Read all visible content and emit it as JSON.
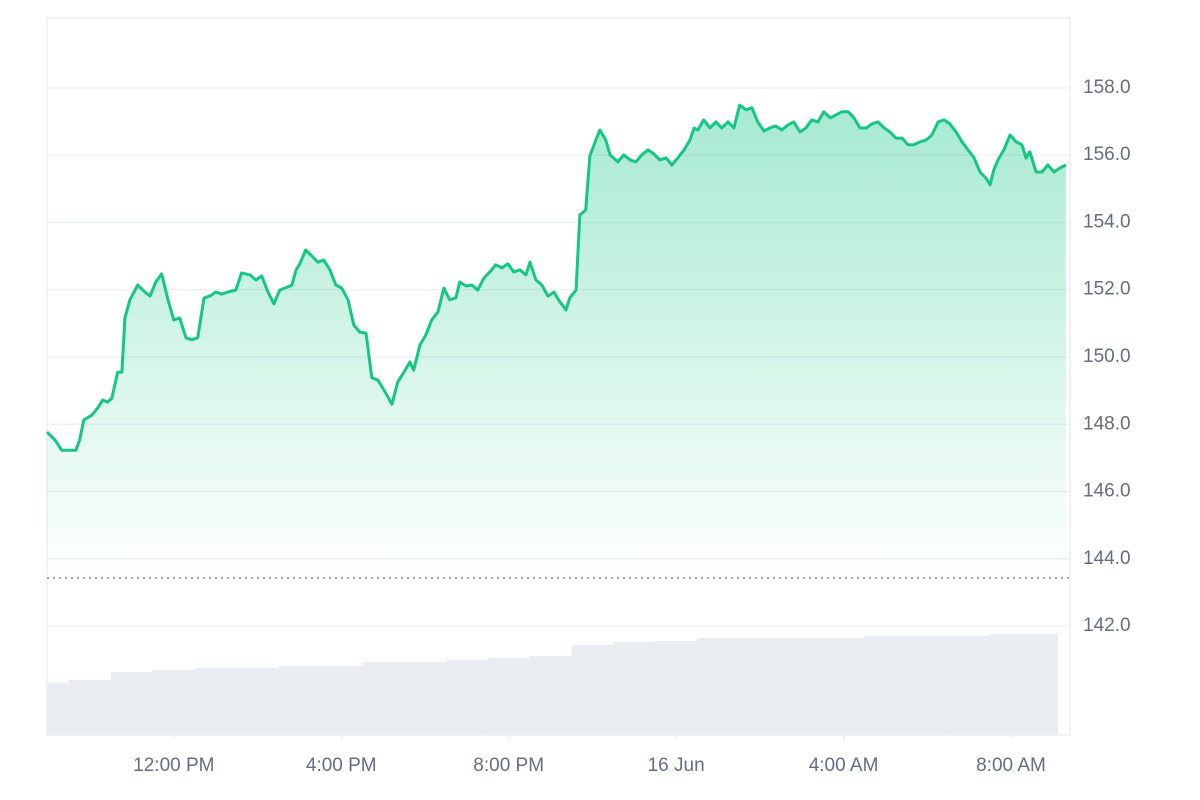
{
  "chart_data": {
    "type": "line",
    "grid": true,
    "xlim": [
      8.97,
      33.41
    ],
    "xticks": [
      {
        "value": 12,
        "label": "12:00 PM"
      },
      {
        "value": 16,
        "label": "4:00 PM"
      },
      {
        "value": 20,
        "label": "8:00 PM"
      },
      {
        "value": 24,
        "label": "16 Jun"
      },
      {
        "value": 28,
        "label": "4:00 AM"
      },
      {
        "value": 32,
        "label": "8:00 AM"
      }
    ],
    "ylim": [
      138.76,
      160.08
    ],
    "yticks": [
      {
        "value": 142,
        "label": "142.0"
      },
      {
        "value": 144,
        "label": "144.0"
      },
      {
        "value": 146,
        "label": "146.0"
      },
      {
        "value": 148,
        "label": "148.0"
      },
      {
        "value": 150,
        "label": "150.0"
      },
      {
        "value": 152,
        "label": "152.0"
      },
      {
        "value": 154,
        "label": "154.0"
      },
      {
        "value": 156,
        "label": "156.0"
      },
      {
        "value": 158,
        "label": "158.0"
      }
    ],
    "y2lim": [
      0,
      100
    ],
    "x": [
      8.97,
      9.16,
      9.32,
      9.51,
      9.66,
      9.75,
      9.85,
      10.04,
      10.18,
      10.3,
      10.42,
      10.52,
      10.66,
      10.76,
      10.83,
      10.95,
      11.14,
      11.31,
      11.43,
      11.57,
      11.71,
      11.86,
      12.0,
      12.14,
      12.29,
      12.43,
      12.57,
      12.72,
      12.86,
      13.0,
      13.15,
      13.29,
      13.48,
      13.62,
      13.82,
      13.96,
      14.1,
      14.25,
      14.39,
      14.53,
      14.72,
      14.82,
      14.92,
      15.01,
      15.15,
      15.3,
      15.44,
      15.58,
      15.73,
      15.87,
      16.01,
      16.16,
      16.3,
      16.44,
      16.59,
      16.73,
      16.87,
      17.02,
      17.21,
      17.35,
      17.5,
      17.64,
      17.73,
      17.88,
      18.02,
      18.16,
      18.31,
      18.45,
      18.59,
      18.74,
      18.83,
      18.98,
      19.12,
      19.26,
      19.41,
      19.55,
      19.69,
      19.84,
      19.98,
      20.12,
      20.27,
      20.41,
      20.51,
      20.65,
      20.79,
      20.94,
      21.08,
      21.22,
      21.37,
      21.46,
      21.61,
      21.7,
      21.84,
      21.94,
      22.08,
      22.18,
      22.32,
      22.42,
      22.61,
      22.75,
      22.9,
      23.04,
      23.18,
      23.33,
      23.47,
      23.61,
      23.76,
      23.9,
      24.04,
      24.19,
      24.33,
      24.43,
      24.52,
      24.66,
      24.81,
      24.95,
      25.09,
      25.24,
      25.38,
      25.52,
      25.67,
      25.81,
      25.95,
      26.1,
      26.24,
      26.38,
      26.53,
      26.67,
      26.81,
      26.96,
      27.1,
      27.24,
      27.39,
      27.53,
      27.68,
      27.82,
      27.96,
      28.11,
      28.25,
      28.39,
      28.54,
      28.68,
      28.82,
      28.97,
      29.11,
      29.25,
      29.4,
      29.54,
      29.68,
      29.83,
      29.97,
      30.11,
      30.26,
      30.4,
      30.54,
      30.69,
      30.83,
      30.97,
      31.12,
      31.26,
      31.4,
      31.5,
      31.59,
      31.69,
      31.83,
      31.98,
      32.12,
      32.26,
      32.36,
      32.45,
      32.6,
      32.74,
      32.88,
      33.03,
      33.17,
      33.31
    ],
    "series": [
      {
        "color": "#16c784",
        "values": [
          147.77,
          147.53,
          147.23,
          147.23,
          147.23,
          147.53,
          148.13,
          148.27,
          148.48,
          148.72,
          148.66,
          148.78,
          149.55,
          149.55,
          151.16,
          151.7,
          152.14,
          151.93,
          151.81,
          152.23,
          152.47,
          151.7,
          151.1,
          151.16,
          150.57,
          150.51,
          150.57,
          151.75,
          151.81,
          151.93,
          151.87,
          151.93,
          151.99,
          152.5,
          152.44,
          152.29,
          152.41,
          151.93,
          151.58,
          151.99,
          152.08,
          152.14,
          152.59,
          152.77,
          153.18,
          153.0,
          152.82,
          152.88,
          152.59,
          152.14,
          152.05,
          151.7,
          150.95,
          150.74,
          150.71,
          149.38,
          149.32,
          149.02,
          148.6,
          149.26,
          149.55,
          149.85,
          149.61,
          150.36,
          150.65,
          151.1,
          151.34,
          152.05,
          151.7,
          151.76,
          152.23,
          152.11,
          152.14,
          151.99,
          152.35,
          152.53,
          152.74,
          152.65,
          152.77,
          152.53,
          152.59,
          152.44,
          152.82,
          152.29,
          152.14,
          151.81,
          151.93,
          151.64,
          151.4,
          151.76,
          151.99,
          154.22,
          154.37,
          155.98,
          156.45,
          156.75,
          156.45,
          156.01,
          155.8,
          156.01,
          155.86,
          155.8,
          156.01,
          156.16,
          156.04,
          155.86,
          155.92,
          155.71,
          155.92,
          156.16,
          156.45,
          156.81,
          156.75,
          157.05,
          156.81,
          156.99,
          156.81,
          156.99,
          156.81,
          157.49,
          157.35,
          157.41,
          156.99,
          156.72,
          156.81,
          156.87,
          156.75,
          156.9,
          156.99,
          156.69,
          156.81,
          157.05,
          156.99,
          157.29,
          157.11,
          157.2,
          157.29,
          157.29,
          157.11,
          156.81,
          156.81,
          156.93,
          156.99,
          156.81,
          156.69,
          156.51,
          156.51,
          156.31,
          156.31,
          156.4,
          156.45,
          156.6,
          156.99,
          157.05,
          156.93,
          156.69,
          156.4,
          156.16,
          155.92,
          155.5,
          155.32,
          155.12,
          155.56,
          155.86,
          156.16,
          156.6,
          156.4,
          156.31,
          155.92,
          156.1,
          155.5,
          155.5,
          155.71,
          155.5,
          155.62,
          155.71
        ]
      }
    ],
    "bars": {
      "color": "#e9ecf0",
      "axis": "y2",
      "x": [
        9,
        10,
        11,
        12,
        13,
        14,
        15,
        16,
        17,
        18,
        19,
        20,
        21,
        22,
        23,
        24,
        25,
        26,
        27,
        28,
        29,
        30,
        31,
        32,
        33
      ],
      "values": [
        47.7,
        50.5,
        57.8,
        59.6,
        61.5,
        61.5,
        63.3,
        63.3,
        67.0,
        67.0,
        68.8,
        70.6,
        72.5,
        82.6,
        85.3,
        86.2,
        89.0,
        89.0,
        89.0,
        89.0,
        90.8,
        90.8,
        90.8,
        92.7,
        92.7
      ]
    }
  }
}
